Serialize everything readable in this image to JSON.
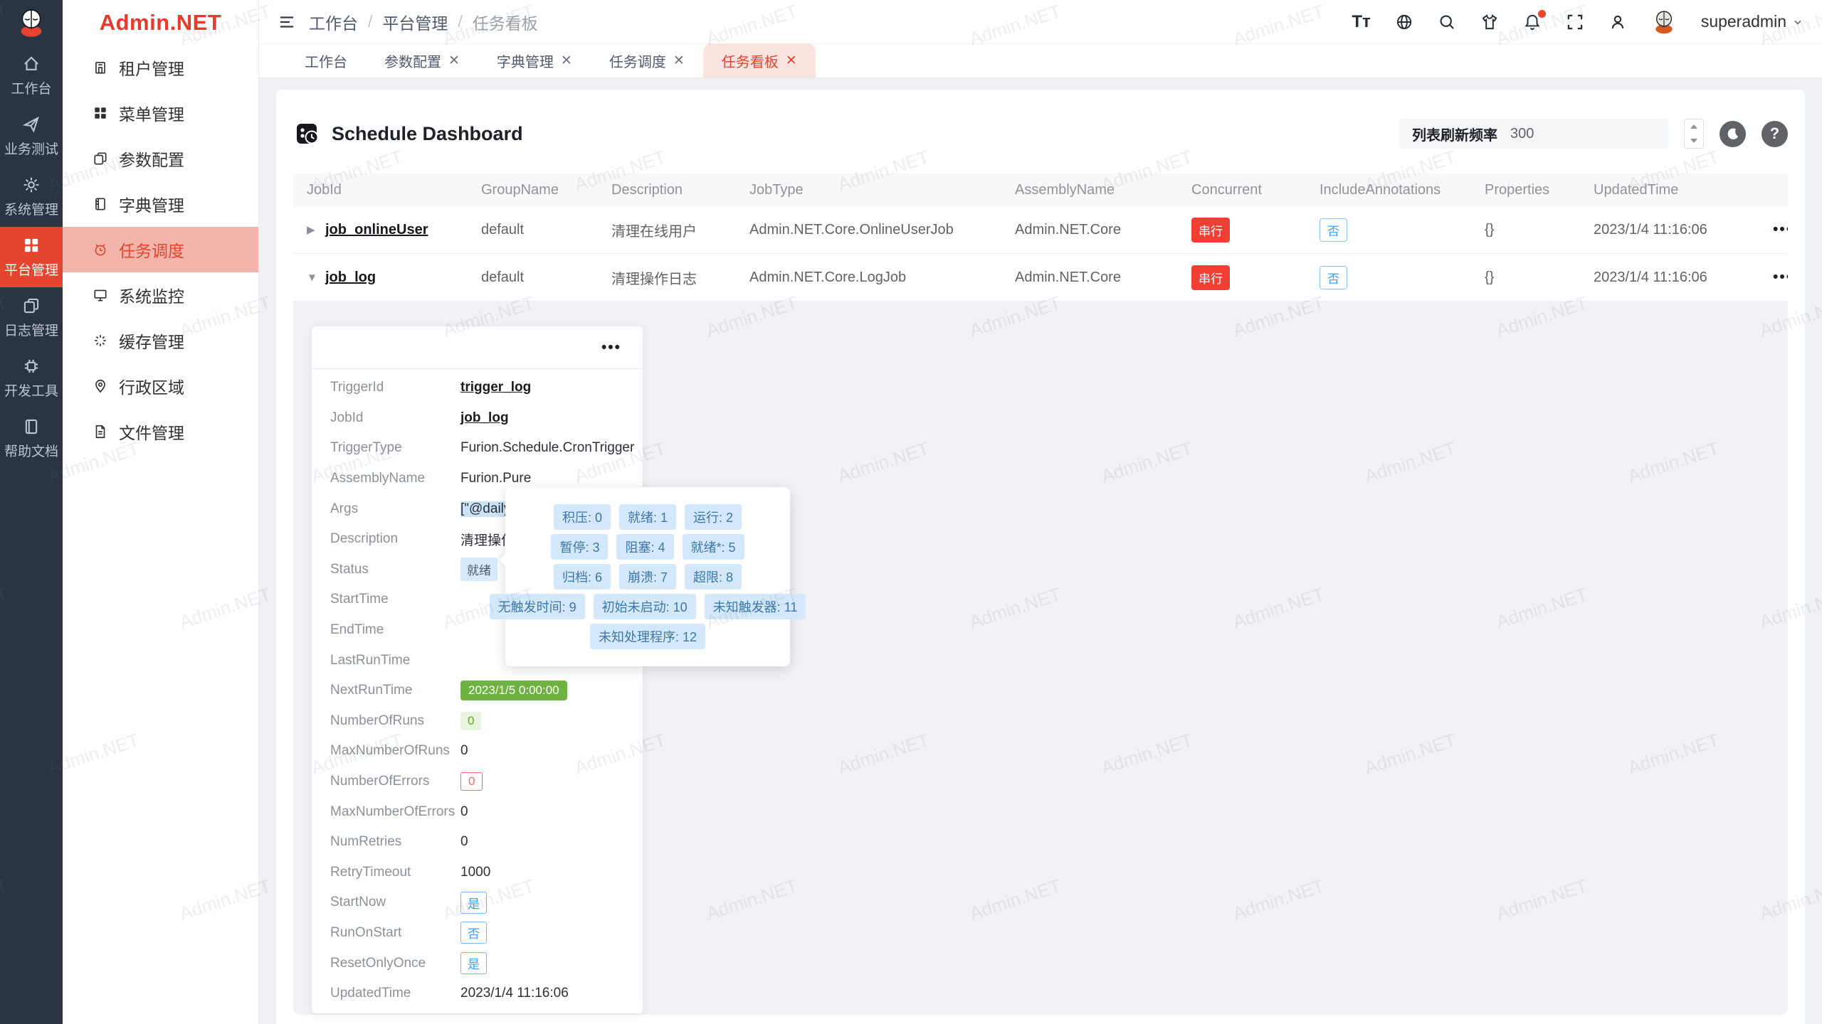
{
  "brand": {
    "name": "Admin.NET"
  },
  "watermark": {
    "text": "Admin.NET"
  },
  "colors": {
    "accent": "#e5452f",
    "primary_blue": "#409eff",
    "success_green": "#6eb33f",
    "rail_bg": "#2a3443"
  },
  "rail": {
    "items": [
      {
        "label": "工作台"
      },
      {
        "label": "业务测试"
      },
      {
        "label": "系统管理"
      },
      {
        "label": "平台管理",
        "active": true
      },
      {
        "label": "日志管理"
      },
      {
        "label": "开发工具"
      },
      {
        "label": "帮助文档"
      }
    ]
  },
  "sidebar": {
    "items": [
      {
        "label": "租户管理"
      },
      {
        "label": "菜单管理"
      },
      {
        "label": "参数配置"
      },
      {
        "label": "字典管理"
      },
      {
        "label": "任务调度",
        "active": true
      },
      {
        "label": "系统监控"
      },
      {
        "label": "缓存管理"
      },
      {
        "label": "行政区域"
      },
      {
        "label": "文件管理"
      }
    ]
  },
  "topbar": {
    "breadcrumb": [
      "工作台",
      "平台管理",
      "任务看板"
    ],
    "username": "superadmin",
    "font_icon_label": "Tт"
  },
  "tabs": [
    {
      "label": "工作台"
    },
    {
      "label": "参数配置",
      "closable": true
    },
    {
      "label": "字典管理",
      "closable": true
    },
    {
      "label": "任务调度",
      "closable": true
    },
    {
      "label": "任务看板",
      "closable": true,
      "active": true
    }
  ],
  "page": {
    "title": "Schedule Dashboard",
    "refresh_label": "列表刷新频率",
    "refresh_value": "300"
  },
  "table": {
    "columns": [
      "JobId",
      "GroupName",
      "Description",
      "JobType",
      "AssemblyName",
      "Concurrent",
      "IncludeAnnotations",
      "Properties",
      "UpdatedTime"
    ],
    "rows": [
      {
        "jobId": "job_onlineUser",
        "groupName": "default",
        "description": "清理在线用户",
        "jobType": "Admin.NET.Core.OnlineUserJob",
        "assemblyName": "Admin.NET.Core",
        "concurrent": "串行",
        "includeAnnotations": "否",
        "properties": "{}",
        "updatedTime": "2023/1/4 11:16:06"
      },
      {
        "jobId": "job_log",
        "groupName": "default",
        "description": "清理操作日志",
        "jobType": "Admin.NET.Core.LogJob",
        "assemblyName": "Admin.NET.Core",
        "concurrent": "串行",
        "includeAnnotations": "否",
        "properties": "{}",
        "updatedTime": "2023/1/4 11:16:06"
      }
    ]
  },
  "detail": {
    "fields": [
      {
        "label": "TriggerId",
        "value": "trigger_log"
      },
      {
        "label": "JobId",
        "value": "job_log"
      },
      {
        "label": "TriggerType",
        "value": "Furion.Schedule.CronTrigger"
      },
      {
        "label": "AssemblyName",
        "value": "Furion.Pure"
      },
      {
        "label": "Args",
        "value": "[\"@daily"
      },
      {
        "label": "Description",
        "value": "清理操作日志"
      },
      {
        "label": "Status",
        "value": "就绪"
      },
      {
        "label": "StartTime",
        "value": ""
      },
      {
        "label": "EndTime",
        "value": ""
      },
      {
        "label": "LastRunTime",
        "value": ""
      },
      {
        "label": "NextRunTime",
        "value": "2023/1/5 0:00:00"
      },
      {
        "label": "NumberOfRuns",
        "value": "0"
      },
      {
        "label": "MaxNumberOfRuns",
        "value": "0"
      },
      {
        "label": "NumberOfErrors",
        "value": "0"
      },
      {
        "label": "MaxNumberOfErrors",
        "value": "0"
      },
      {
        "label": "NumRetries",
        "value": "0"
      },
      {
        "label": "RetryTimeout",
        "value": "1000"
      },
      {
        "label": "StartNow",
        "value": "是"
      },
      {
        "label": "RunOnStart",
        "value": "否"
      },
      {
        "label": "ResetOnlyOnce",
        "value": "是"
      },
      {
        "label": "UpdatedTime",
        "value": "2023/1/4 11:16:06"
      }
    ]
  },
  "status_popover": {
    "rows": [
      [
        "积压: 0",
        "就绪: 1",
        "运行: 2"
      ],
      [
        "暂停: 3",
        "阻塞: 4",
        "就绪*: 5"
      ],
      [
        "归档: 6",
        "崩溃: 7",
        "超限: 8"
      ],
      [
        "无触发时间: 9",
        "初始未启动: 10",
        "未知触发器: 11"
      ],
      [
        "未知处理程序: 12"
      ]
    ]
  }
}
